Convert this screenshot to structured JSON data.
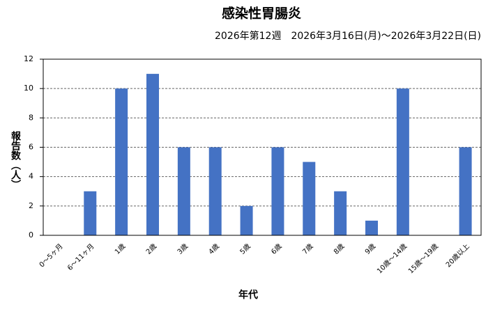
{
  "chart_data": {
    "type": "bar",
    "title": "感染性胃腸炎",
    "subtitle": "2026年第12週　2026年3月16日(月)～2026年3月22日(日)",
    "x_label": "年代",
    "y_label": "報告数（人）",
    "categories": [
      "0～5ヶ月",
      "6～11ヶ月",
      "1歳",
      "2歳",
      "3歳",
      "4歳",
      "5歳",
      "6歳",
      "7歳",
      "8歳",
      "9歳",
      "10歳～14歳",
      "15歳～19歳",
      "20歳以上"
    ],
    "values": [
      0,
      3,
      10,
      11,
      6,
      6,
      2,
      6,
      5,
      3,
      1,
      10,
      0,
      6
    ],
    "color": "#4472c4",
    "ylim": [
      0,
      12
    ],
    "yticks": [
      0,
      2,
      4,
      6,
      8,
      10,
      12
    ],
    "grid": true
  }
}
